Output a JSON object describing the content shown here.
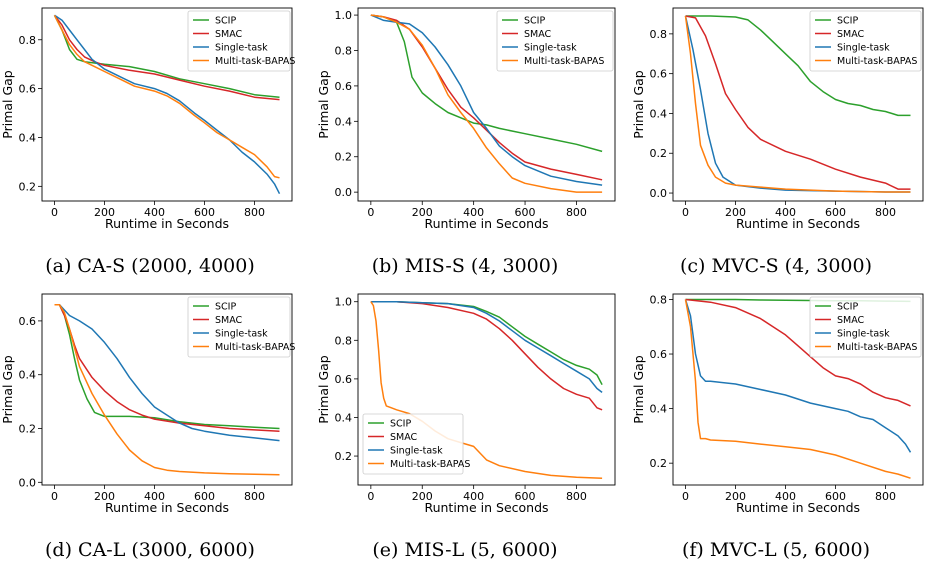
{
  "colors": {
    "SCIP": "#2ca02c",
    "SMAC": "#d62728",
    "Single-task": "#1f77b4",
    "Multi-task-BAPAS": "#ff7f0e"
  },
  "chart_data": [
    {
      "type": "line",
      "caption": "(a) CA-S (2000, 4000)",
      "xlabel": "Runtime in Seconds",
      "ylabel": "Primal Gap",
      "xlim": [
        -50,
        950
      ],
      "ylim": [
        0.14,
        0.93
      ],
      "xticks": [
        0,
        200,
        400,
        600,
        800
      ],
      "yticks": [
        0.2,
        0.4,
        0.6,
        0.8
      ],
      "ytick_labels": [
        "0.2",
        "0.4",
        "0.6",
        "0.8"
      ],
      "legend_position": "top-right",
      "grid": false,
      "series": [
        {
          "name": "SCIP",
          "x": [
            0,
            30,
            60,
            90,
            120,
            160,
            200,
            300,
            400,
            500,
            600,
            700,
            800,
            900
          ],
          "y": [
            0.9,
            0.84,
            0.76,
            0.72,
            0.71,
            0.705,
            0.7,
            0.69,
            0.67,
            0.64,
            0.62,
            0.6,
            0.575,
            0.565
          ]
        },
        {
          "name": "SMAC",
          "x": [
            0,
            30,
            60,
            90,
            120,
            160,
            200,
            300,
            400,
            500,
            600,
            700,
            800,
            900
          ],
          "y": [
            0.9,
            0.86,
            0.8,
            0.76,
            0.73,
            0.71,
            0.695,
            0.675,
            0.66,
            0.635,
            0.61,
            0.59,
            0.565,
            0.555
          ]
        },
        {
          "name": "Single-task",
          "x": [
            0,
            30,
            60,
            90,
            120,
            150,
            200,
            260,
            320,
            400,
            450,
            500,
            560,
            600,
            650,
            700,
            750,
            800,
            850,
            880,
            900
          ],
          "y": [
            0.9,
            0.88,
            0.84,
            0.8,
            0.76,
            0.72,
            0.68,
            0.65,
            0.62,
            0.6,
            0.58,
            0.55,
            0.5,
            0.47,
            0.43,
            0.39,
            0.34,
            0.3,
            0.25,
            0.21,
            0.17
          ]
        },
        {
          "name": "Multi-task-BAPAS",
          "x": [
            0,
            30,
            60,
            90,
            120,
            160,
            200,
            260,
            320,
            400,
            450,
            500,
            560,
            600,
            650,
            700,
            750,
            800,
            850,
            880,
            900
          ],
          "y": [
            0.9,
            0.84,
            0.78,
            0.74,
            0.71,
            0.69,
            0.67,
            0.64,
            0.61,
            0.59,
            0.57,
            0.54,
            0.49,
            0.46,
            0.42,
            0.39,
            0.36,
            0.33,
            0.28,
            0.24,
            0.235
          ]
        }
      ]
    },
    {
      "type": "line",
      "caption": "(b) MIS-S (4, 3000)",
      "xlabel": "Runtime in Seconds",
      "ylabel": "Primal Gap",
      "xlim": [
        -50,
        950
      ],
      "ylim": [
        -0.05,
        1.04
      ],
      "xticks": [
        0,
        200,
        400,
        600,
        800
      ],
      "yticks": [
        0.0,
        0.2,
        0.4,
        0.6,
        0.8,
        1.0
      ],
      "ytick_labels": [
        "0.0",
        "0.2",
        "0.4",
        "0.6",
        "0.8",
        "1.0"
      ],
      "legend_position": "top-right",
      "grid": false,
      "series": [
        {
          "name": "SCIP",
          "x": [
            0,
            50,
            100,
            130,
            160,
            200,
            250,
            300,
            350,
            400,
            450,
            500,
            600,
            700,
            800,
            900
          ],
          "y": [
            1.0,
            0.99,
            0.96,
            0.85,
            0.65,
            0.56,
            0.5,
            0.45,
            0.42,
            0.39,
            0.38,
            0.36,
            0.33,
            0.3,
            0.27,
            0.23
          ]
        },
        {
          "name": "SMAC",
          "x": [
            0,
            50,
            100,
            150,
            200,
            250,
            300,
            350,
            400,
            450,
            500,
            550,
            600,
            700,
            800,
            900
          ],
          "y": [
            1.0,
            0.99,
            0.97,
            0.92,
            0.82,
            0.7,
            0.58,
            0.48,
            0.42,
            0.35,
            0.28,
            0.22,
            0.17,
            0.13,
            0.1,
            0.07
          ]
        },
        {
          "name": "Single-task",
          "x": [
            0,
            50,
            100,
            150,
            200,
            250,
            300,
            350,
            400,
            450,
            500,
            550,
            600,
            700,
            800,
            900
          ],
          "y": [
            1.0,
            0.97,
            0.96,
            0.95,
            0.9,
            0.82,
            0.72,
            0.6,
            0.45,
            0.36,
            0.26,
            0.2,
            0.15,
            0.09,
            0.06,
            0.04
          ]
        },
        {
          "name": "Multi-task-BAPAS",
          "x": [
            0,
            50,
            100,
            150,
            200,
            250,
            300,
            350,
            400,
            450,
            500,
            550,
            600,
            700,
            800,
            900
          ],
          "y": [
            1.0,
            0.99,
            0.96,
            0.92,
            0.83,
            0.7,
            0.55,
            0.45,
            0.36,
            0.25,
            0.16,
            0.08,
            0.05,
            0.02,
            0.0,
            0.0
          ]
        }
      ]
    },
    {
      "type": "line",
      "caption": "(c) MVC-S (4, 3000)",
      "xlabel": "Runtime in Seconds",
      "ylabel": "Primal Gap",
      "xlim": [
        -50,
        950
      ],
      "ylim": [
        -0.04,
        0.93
      ],
      "xticks": [
        0,
        200,
        400,
        600,
        800
      ],
      "yticks": [
        0.0,
        0.2,
        0.4,
        0.6,
        0.8
      ],
      "ytick_labels": [
        "0.0",
        "0.2",
        "0.4",
        "0.6",
        "0.8"
      ],
      "legend_position": "top-right",
      "grid": false,
      "series": [
        {
          "name": "SCIP",
          "x": [
            0,
            100,
            200,
            250,
            300,
            350,
            400,
            450,
            500,
            550,
            600,
            650,
            700,
            750,
            800,
            850,
            900
          ],
          "y": [
            0.89,
            0.89,
            0.885,
            0.87,
            0.82,
            0.76,
            0.7,
            0.64,
            0.56,
            0.51,
            0.47,
            0.45,
            0.44,
            0.42,
            0.41,
            0.39,
            0.39
          ]
        },
        {
          "name": "SMAC",
          "x": [
            0,
            40,
            80,
            120,
            160,
            200,
            250,
            300,
            400,
            500,
            600,
            700,
            800,
            850,
            900
          ],
          "y": [
            0.89,
            0.88,
            0.79,
            0.65,
            0.5,
            0.42,
            0.33,
            0.27,
            0.21,
            0.17,
            0.12,
            0.08,
            0.05,
            0.02,
            0.02
          ]
        },
        {
          "name": "Single-task",
          "x": [
            0,
            30,
            60,
            90,
            120,
            150,
            200,
            300,
            400,
            600,
            800,
            900
          ],
          "y": [
            0.89,
            0.72,
            0.52,
            0.3,
            0.15,
            0.08,
            0.04,
            0.025,
            0.015,
            0.01,
            0.005,
            0.005
          ]
        },
        {
          "name": "Multi-task-BAPAS",
          "x": [
            0,
            20,
            40,
            60,
            90,
            120,
            160,
            200,
            300,
            400,
            600,
            800,
            900
          ],
          "y": [
            0.89,
            0.7,
            0.45,
            0.24,
            0.14,
            0.08,
            0.05,
            0.04,
            0.03,
            0.02,
            0.01,
            0.005,
            0.005
          ]
        }
      ]
    },
    {
      "type": "line",
      "caption": "(d) CA-L (3000, 6000)",
      "xlabel": "Runtime in Seconds",
      "ylabel": "Primal Gap",
      "xlim": [
        -50,
        950
      ],
      "ylim": [
        -0.01,
        0.7
      ],
      "xticks": [
        0,
        200,
        400,
        600,
        800
      ],
      "yticks": [
        0.0,
        0.2,
        0.4,
        0.6
      ],
      "ytick_labels": [
        "0.0",
        "0.2",
        "0.4",
        "0.6"
      ],
      "legend_position": "top-right",
      "grid": false,
      "series": [
        {
          "name": "SCIP",
          "x": [
            0,
            20,
            40,
            60,
            80,
            100,
            130,
            160,
            200,
            250,
            300,
            400,
            500,
            600,
            700,
            800,
            900
          ],
          "y": [
            0.66,
            0.66,
            0.62,
            0.55,
            0.46,
            0.38,
            0.31,
            0.26,
            0.245,
            0.245,
            0.245,
            0.24,
            0.225,
            0.215,
            0.21,
            0.205,
            0.2
          ]
        },
        {
          "name": "SMAC",
          "x": [
            0,
            20,
            40,
            60,
            80,
            100,
            150,
            200,
            250,
            300,
            350,
            400,
            500,
            600,
            700,
            800,
            900
          ],
          "y": [
            0.66,
            0.66,
            0.62,
            0.57,
            0.51,
            0.46,
            0.39,
            0.34,
            0.3,
            0.27,
            0.25,
            0.235,
            0.22,
            0.21,
            0.2,
            0.195,
            0.19
          ]
        },
        {
          "name": "Single-task",
          "x": [
            0,
            20,
            40,
            60,
            100,
            150,
            200,
            250,
            300,
            350,
            400,
            450,
            500,
            550,
            600,
            700,
            800,
            900
          ],
          "y": [
            0.66,
            0.66,
            0.64,
            0.62,
            0.6,
            0.57,
            0.52,
            0.46,
            0.39,
            0.33,
            0.28,
            0.25,
            0.22,
            0.2,
            0.19,
            0.175,
            0.165,
            0.155
          ]
        },
        {
          "name": "Multi-task-BAPAS",
          "x": [
            0,
            20,
            40,
            60,
            80,
            100,
            150,
            200,
            250,
            300,
            350,
            400,
            450,
            500,
            600,
            700,
            800,
            900
          ],
          "y": [
            0.66,
            0.66,
            0.63,
            0.57,
            0.5,
            0.43,
            0.33,
            0.25,
            0.18,
            0.12,
            0.08,
            0.055,
            0.045,
            0.04,
            0.035,
            0.032,
            0.03,
            0.028
          ]
        }
      ]
    },
    {
      "type": "line",
      "caption": "(e) MIS-L (5, 6000)",
      "xlabel": "Runtime in Seconds",
      "ylabel": "Primal Gap",
      "xlim": [
        -50,
        950
      ],
      "ylim": [
        0.05,
        1.04
      ],
      "xticks": [
        0,
        200,
        400,
        600,
        800
      ],
      "yticks": [
        0.2,
        0.4,
        0.6,
        0.8,
        1.0
      ],
      "ytick_labels": [
        "0.2",
        "0.4",
        "0.6",
        "0.8",
        "1.0"
      ],
      "legend_position": "bottom-left",
      "grid": false,
      "series": [
        {
          "name": "SCIP",
          "x": [
            0,
            100,
            200,
            300,
            400,
            450,
            500,
            550,
            600,
            650,
            700,
            750,
            800,
            850,
            880,
            900
          ],
          "y": [
            1.0,
            1.0,
            0.995,
            0.99,
            0.975,
            0.95,
            0.92,
            0.87,
            0.82,
            0.78,
            0.74,
            0.7,
            0.67,
            0.65,
            0.62,
            0.57
          ]
        },
        {
          "name": "SMAC",
          "x": [
            0,
            100,
            200,
            300,
            400,
            450,
            500,
            550,
            600,
            650,
            700,
            750,
            800,
            850,
            880,
            900
          ],
          "y": [
            1.0,
            1.0,
            0.99,
            0.97,
            0.94,
            0.91,
            0.86,
            0.8,
            0.73,
            0.66,
            0.6,
            0.55,
            0.52,
            0.5,
            0.45,
            0.44
          ]
        },
        {
          "name": "Single-task",
          "x": [
            0,
            100,
            200,
            300,
            400,
            450,
            500,
            550,
            600,
            650,
            700,
            750,
            800,
            850,
            880,
            900
          ],
          "y": [
            1.0,
            1.0,
            0.995,
            0.99,
            0.97,
            0.94,
            0.9,
            0.85,
            0.8,
            0.76,
            0.72,
            0.68,
            0.64,
            0.6,
            0.55,
            0.53
          ]
        },
        {
          "name": "Multi-task-BAPAS",
          "x": [
            0,
            10,
            20,
            30,
            40,
            50,
            60,
            80,
            100,
            150,
            200,
            250,
            300,
            350,
            400,
            450,
            500,
            600,
            700,
            800,
            900
          ],
          "y": [
            1.0,
            0.98,
            0.9,
            0.75,
            0.58,
            0.5,
            0.46,
            0.45,
            0.44,
            0.42,
            0.38,
            0.33,
            0.29,
            0.27,
            0.25,
            0.18,
            0.15,
            0.12,
            0.1,
            0.09,
            0.085
          ]
        }
      ]
    },
    {
      "type": "line",
      "caption": "(f) MVC-L (5, 6000)",
      "xlabel": "Runtime in Seconds",
      "ylabel": "Primal Gap",
      "xlim": [
        -50,
        950
      ],
      "ylim": [
        0.12,
        0.82
      ],
      "xticks": [
        0,
        200,
        400,
        600,
        800
      ],
      "yticks": [
        0.2,
        0.4,
        0.6,
        0.8
      ],
      "ytick_labels": [
        "0.2",
        "0.4",
        "0.6",
        "0.8"
      ],
      "legend_position": "top-right",
      "grid": false,
      "series": [
        {
          "name": "SCIP",
          "x": [
            0,
            100,
            200,
            300,
            400,
            500,
            600,
            700,
            800,
            900
          ],
          "y": [
            0.8,
            0.8,
            0.8,
            0.798,
            0.797,
            0.796,
            0.795,
            0.795,
            0.794,
            0.793
          ]
        },
        {
          "name": "SMAC",
          "x": [
            0,
            100,
            200,
            250,
            300,
            350,
            400,
            450,
            500,
            550,
            600,
            650,
            700,
            750,
            800,
            850,
            900
          ],
          "y": [
            0.8,
            0.79,
            0.77,
            0.75,
            0.73,
            0.7,
            0.67,
            0.63,
            0.59,
            0.55,
            0.52,
            0.51,
            0.49,
            0.46,
            0.44,
            0.43,
            0.41
          ]
        },
        {
          "name": "Single-task",
          "x": [
            0,
            20,
            40,
            60,
            80,
            100,
            200,
            300,
            400,
            500,
            600,
            650,
            700,
            750,
            800,
            850,
            880,
            900
          ],
          "y": [
            0.8,
            0.74,
            0.6,
            0.52,
            0.5,
            0.5,
            0.49,
            0.47,
            0.45,
            0.42,
            0.4,
            0.39,
            0.37,
            0.36,
            0.33,
            0.3,
            0.27,
            0.24
          ]
        },
        {
          "name": "Multi-task-BAPAS",
          "x": [
            0,
            20,
            40,
            50,
            60,
            80,
            100,
            200,
            300,
            400,
            500,
            600,
            700,
            800,
            850,
            900
          ],
          "y": [
            0.8,
            0.7,
            0.5,
            0.35,
            0.29,
            0.29,
            0.285,
            0.28,
            0.27,
            0.26,
            0.25,
            0.23,
            0.2,
            0.17,
            0.16,
            0.145
          ]
        }
      ]
    }
  ]
}
